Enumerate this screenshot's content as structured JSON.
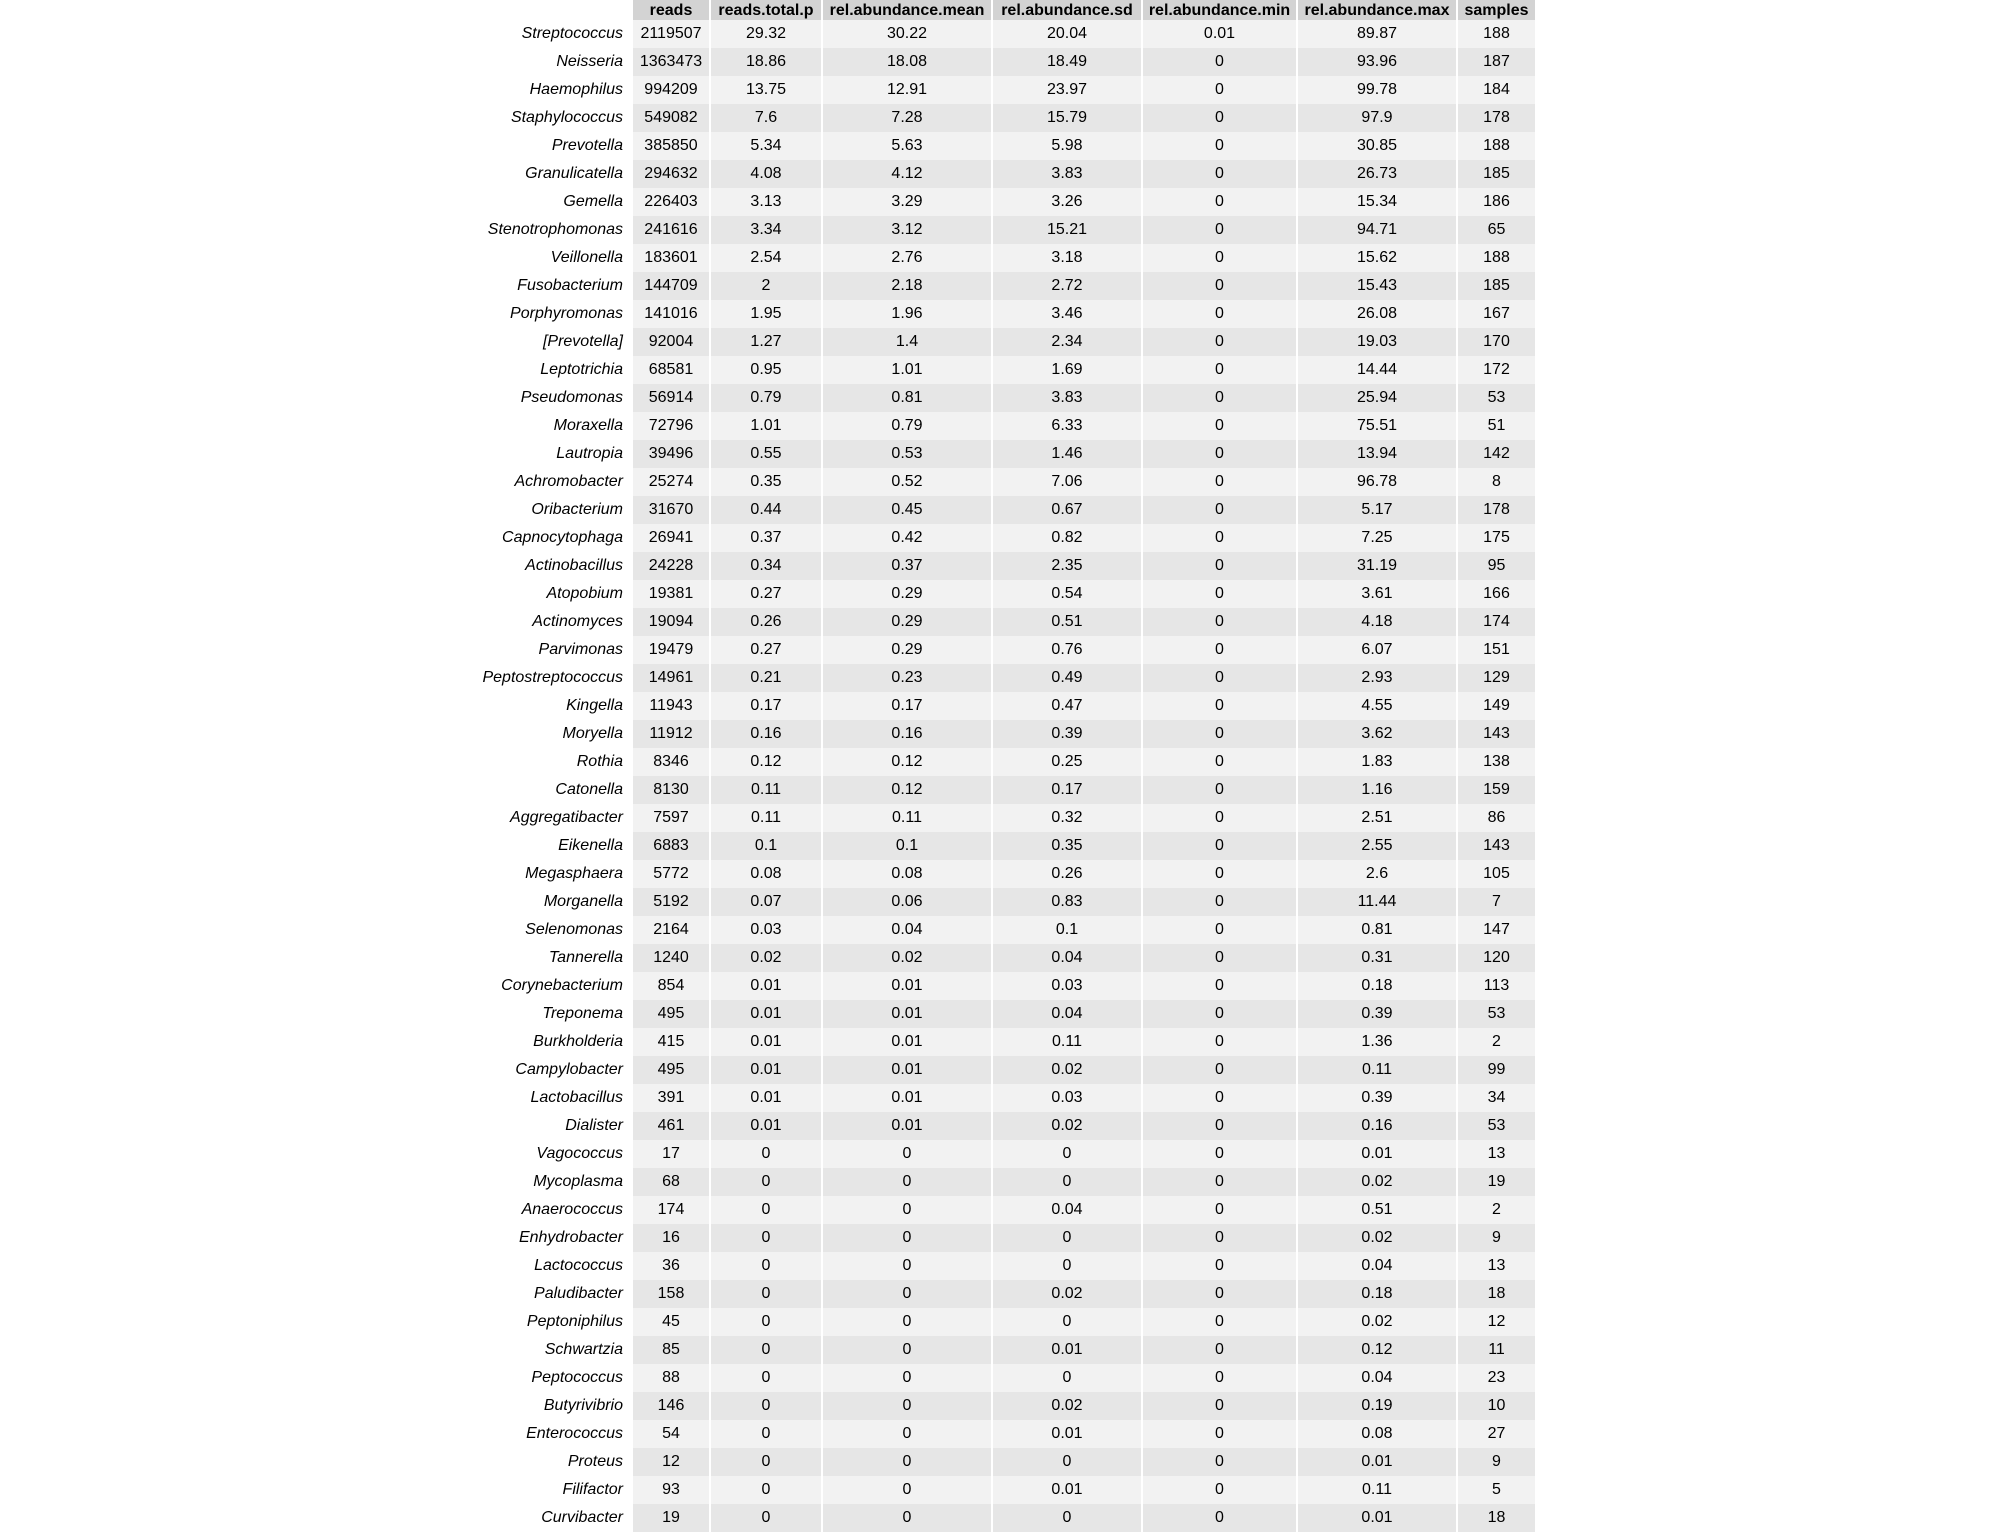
{
  "chart_data": {
    "type": "table",
    "columns": [
      "reads",
      "reads.total.p",
      "rel.abundance.mean",
      "rel.abundance.sd",
      "rel.abundance.min",
      "rel.abundance.max",
      "samples"
    ],
    "rows": [
      {
        "name": "Streptococcus",
        "values": [
          "2119507",
          "29.32",
          "30.22",
          "20.04",
          "0.01",
          "89.87",
          "188"
        ]
      },
      {
        "name": "Neisseria",
        "values": [
          "1363473",
          "18.86",
          "18.08",
          "18.49",
          "0",
          "93.96",
          "187"
        ]
      },
      {
        "name": "Haemophilus",
        "values": [
          "994209",
          "13.75",
          "12.91",
          "23.97",
          "0",
          "99.78",
          "184"
        ]
      },
      {
        "name": "Staphylococcus",
        "values": [
          "549082",
          "7.6",
          "7.28",
          "15.79",
          "0",
          "97.9",
          "178"
        ]
      },
      {
        "name": "Prevotella",
        "values": [
          "385850",
          "5.34",
          "5.63",
          "5.98",
          "0",
          "30.85",
          "188"
        ]
      },
      {
        "name": "Granulicatella",
        "values": [
          "294632",
          "4.08",
          "4.12",
          "3.83",
          "0",
          "26.73",
          "185"
        ]
      },
      {
        "name": "Gemella",
        "values": [
          "226403",
          "3.13",
          "3.29",
          "3.26",
          "0",
          "15.34",
          "186"
        ]
      },
      {
        "name": "Stenotrophomonas",
        "values": [
          "241616",
          "3.34",
          "3.12",
          "15.21",
          "0",
          "94.71",
          "65"
        ]
      },
      {
        "name": "Veillonella",
        "values": [
          "183601",
          "2.54",
          "2.76",
          "3.18",
          "0",
          "15.62",
          "188"
        ]
      },
      {
        "name": "Fusobacterium",
        "values": [
          "144709",
          "2",
          "2.18",
          "2.72",
          "0",
          "15.43",
          "185"
        ]
      },
      {
        "name": "Porphyromonas",
        "values": [
          "141016",
          "1.95",
          "1.96",
          "3.46",
          "0",
          "26.08",
          "167"
        ]
      },
      {
        "name": "[Prevotella]",
        "values": [
          "92004",
          "1.27",
          "1.4",
          "2.34",
          "0",
          "19.03",
          "170"
        ]
      },
      {
        "name": "Leptotrichia",
        "values": [
          "68581",
          "0.95",
          "1.01",
          "1.69",
          "0",
          "14.44",
          "172"
        ]
      },
      {
        "name": "Pseudomonas",
        "values": [
          "56914",
          "0.79",
          "0.81",
          "3.83",
          "0",
          "25.94",
          "53"
        ]
      },
      {
        "name": "Moraxella",
        "values": [
          "72796",
          "1.01",
          "0.79",
          "6.33",
          "0",
          "75.51",
          "51"
        ]
      },
      {
        "name": "Lautropia",
        "values": [
          "39496",
          "0.55",
          "0.53",
          "1.46",
          "0",
          "13.94",
          "142"
        ]
      },
      {
        "name": "Achromobacter",
        "values": [
          "25274",
          "0.35",
          "0.52",
          "7.06",
          "0",
          "96.78",
          "8"
        ]
      },
      {
        "name": "Oribacterium",
        "values": [
          "31670",
          "0.44",
          "0.45",
          "0.67",
          "0",
          "5.17",
          "178"
        ]
      },
      {
        "name": "Capnocytophaga",
        "values": [
          "26941",
          "0.37",
          "0.42",
          "0.82",
          "0",
          "7.25",
          "175"
        ]
      },
      {
        "name": "Actinobacillus",
        "values": [
          "24228",
          "0.34",
          "0.37",
          "2.35",
          "0",
          "31.19",
          "95"
        ]
      },
      {
        "name": "Atopobium",
        "values": [
          "19381",
          "0.27",
          "0.29",
          "0.54",
          "0",
          "3.61",
          "166"
        ]
      },
      {
        "name": "Actinomyces",
        "values": [
          "19094",
          "0.26",
          "0.29",
          "0.51",
          "0",
          "4.18",
          "174"
        ]
      },
      {
        "name": "Parvimonas",
        "values": [
          "19479",
          "0.27",
          "0.29",
          "0.76",
          "0",
          "6.07",
          "151"
        ]
      },
      {
        "name": "Peptostreptococcus",
        "values": [
          "14961",
          "0.21",
          "0.23",
          "0.49",
          "0",
          "2.93",
          "129"
        ]
      },
      {
        "name": "Kingella",
        "values": [
          "11943",
          "0.17",
          "0.17",
          "0.47",
          "0",
          "4.55",
          "149"
        ]
      },
      {
        "name": "Moryella",
        "values": [
          "11912",
          "0.16",
          "0.16",
          "0.39",
          "0",
          "3.62",
          "143"
        ]
      },
      {
        "name": "Rothia",
        "values": [
          "8346",
          "0.12",
          "0.12",
          "0.25",
          "0",
          "1.83",
          "138"
        ]
      },
      {
        "name": "Catonella",
        "values": [
          "8130",
          "0.11",
          "0.12",
          "0.17",
          "0",
          "1.16",
          "159"
        ]
      },
      {
        "name": "Aggregatibacter",
        "values": [
          "7597",
          "0.11",
          "0.11",
          "0.32",
          "0",
          "2.51",
          "86"
        ]
      },
      {
        "name": "Eikenella",
        "values": [
          "6883",
          "0.1",
          "0.1",
          "0.35",
          "0",
          "2.55",
          "143"
        ]
      },
      {
        "name": "Megasphaera",
        "values": [
          "5772",
          "0.08",
          "0.08",
          "0.26",
          "0",
          "2.6",
          "105"
        ]
      },
      {
        "name": "Morganella",
        "values": [
          "5192",
          "0.07",
          "0.06",
          "0.83",
          "0",
          "11.44",
          "7"
        ]
      },
      {
        "name": "Selenomonas",
        "values": [
          "2164",
          "0.03",
          "0.04",
          "0.1",
          "0",
          "0.81",
          "147"
        ]
      },
      {
        "name": "Tannerella",
        "values": [
          "1240",
          "0.02",
          "0.02",
          "0.04",
          "0",
          "0.31",
          "120"
        ]
      },
      {
        "name": "Corynebacterium",
        "values": [
          "854",
          "0.01",
          "0.01",
          "0.03",
          "0",
          "0.18",
          "113"
        ]
      },
      {
        "name": "Treponema",
        "values": [
          "495",
          "0.01",
          "0.01",
          "0.04",
          "0",
          "0.39",
          "53"
        ]
      },
      {
        "name": "Burkholderia",
        "values": [
          "415",
          "0.01",
          "0.01",
          "0.11",
          "0",
          "1.36",
          "2"
        ]
      },
      {
        "name": "Campylobacter",
        "values": [
          "495",
          "0.01",
          "0.01",
          "0.02",
          "0",
          "0.11",
          "99"
        ]
      },
      {
        "name": "Lactobacillus",
        "values": [
          "391",
          "0.01",
          "0.01",
          "0.03",
          "0",
          "0.39",
          "34"
        ]
      },
      {
        "name": "Dialister",
        "values": [
          "461",
          "0.01",
          "0.01",
          "0.02",
          "0",
          "0.16",
          "53"
        ]
      },
      {
        "name": "Vagococcus",
        "values": [
          "17",
          "0",
          "0",
          "0",
          "0",
          "0.01",
          "13"
        ]
      },
      {
        "name": "Mycoplasma",
        "values": [
          "68",
          "0",
          "0",
          "0",
          "0",
          "0.02",
          "19"
        ]
      },
      {
        "name": "Anaerococcus",
        "values": [
          "174",
          "0",
          "0",
          "0.04",
          "0",
          "0.51",
          "2"
        ]
      },
      {
        "name": "Enhydrobacter",
        "values": [
          "16",
          "0",
          "0",
          "0",
          "0",
          "0.02",
          "9"
        ]
      },
      {
        "name": "Lactococcus",
        "values": [
          "36",
          "0",
          "0",
          "0",
          "0",
          "0.04",
          "13"
        ]
      },
      {
        "name": "Paludibacter",
        "values": [
          "158",
          "0",
          "0",
          "0.02",
          "0",
          "0.18",
          "18"
        ]
      },
      {
        "name": "Peptoniphilus",
        "values": [
          "45",
          "0",
          "0",
          "0",
          "0",
          "0.02",
          "12"
        ]
      },
      {
        "name": "Schwartzia",
        "values": [
          "85",
          "0",
          "0",
          "0.01",
          "0",
          "0.12",
          "11"
        ]
      },
      {
        "name": "Peptococcus",
        "values": [
          "88",
          "0",
          "0",
          "0",
          "0",
          "0.04",
          "23"
        ]
      },
      {
        "name": "Butyrivibrio",
        "values": [
          "146",
          "0",
          "0",
          "0.02",
          "0",
          "0.19",
          "10"
        ]
      },
      {
        "name": "Enterococcus",
        "values": [
          "54",
          "0",
          "0",
          "0.01",
          "0",
          "0.08",
          "27"
        ]
      },
      {
        "name": "Proteus",
        "values": [
          "12",
          "0",
          "0",
          "0",
          "0",
          "0.01",
          "9"
        ]
      },
      {
        "name": "Filifactor",
        "values": [
          "93",
          "0",
          "0",
          "0.01",
          "0",
          "0.11",
          "5"
        ]
      },
      {
        "name": "Curvibacter",
        "values": [
          "19",
          "0",
          "0",
          "0",
          "0",
          "0.01",
          "18"
        ]
      }
    ]
  }
}
